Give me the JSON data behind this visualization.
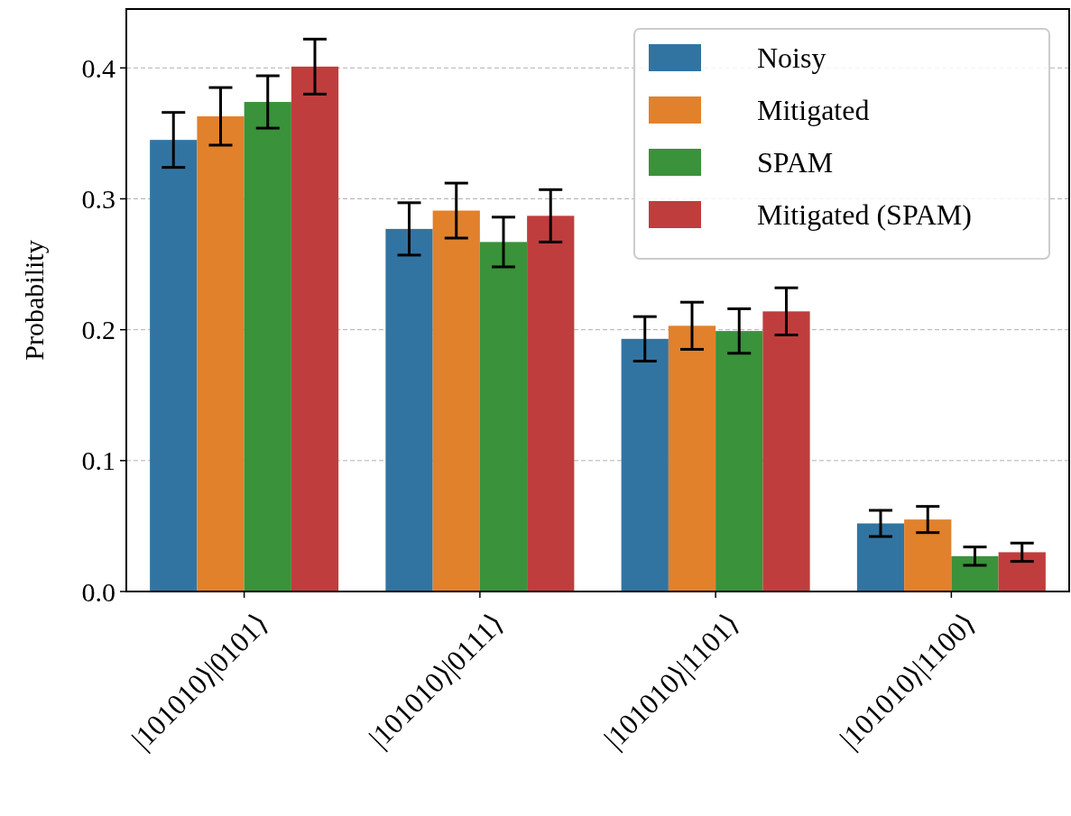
{
  "chart_data": {
    "type": "bar",
    "ylabel": "Probability",
    "categories": [
      "|101010⟩|0101⟩",
      "|101010⟩|0111⟩",
      "|101010⟩|1101⟩",
      "|101010⟩|1100⟩"
    ],
    "series": [
      {
        "name": "Noisy",
        "color": "#3274a1",
        "values": [
          0.345,
          0.277,
          0.193,
          0.052
        ],
        "errors": [
          0.021,
          0.02,
          0.017,
          0.01
        ]
      },
      {
        "name": "Mitigated",
        "color": "#e1812c",
        "values": [
          0.363,
          0.291,
          0.203,
          0.055
        ],
        "errors": [
          0.022,
          0.021,
          0.018,
          0.01
        ]
      },
      {
        "name": "SPAM",
        "color": "#3a923a",
        "values": [
          0.374,
          0.267,
          0.199,
          0.027
        ],
        "errors": [
          0.02,
          0.019,
          0.017,
          0.007
        ]
      },
      {
        "name": "Mitigated (SPAM)",
        "color": "#c03d3e",
        "values": [
          0.401,
          0.287,
          0.214,
          0.03
        ],
        "errors": [
          0.021,
          0.02,
          0.018,
          0.007
        ]
      }
    ],
    "ylim": [
      0,
      0.445
    ],
    "yticks": [
      {
        "value": 0,
        "label": "0.0"
      },
      0.1,
      0.2,
      0.3,
      0.4
    ],
    "grid": "y",
    "legend": "top right"
  }
}
